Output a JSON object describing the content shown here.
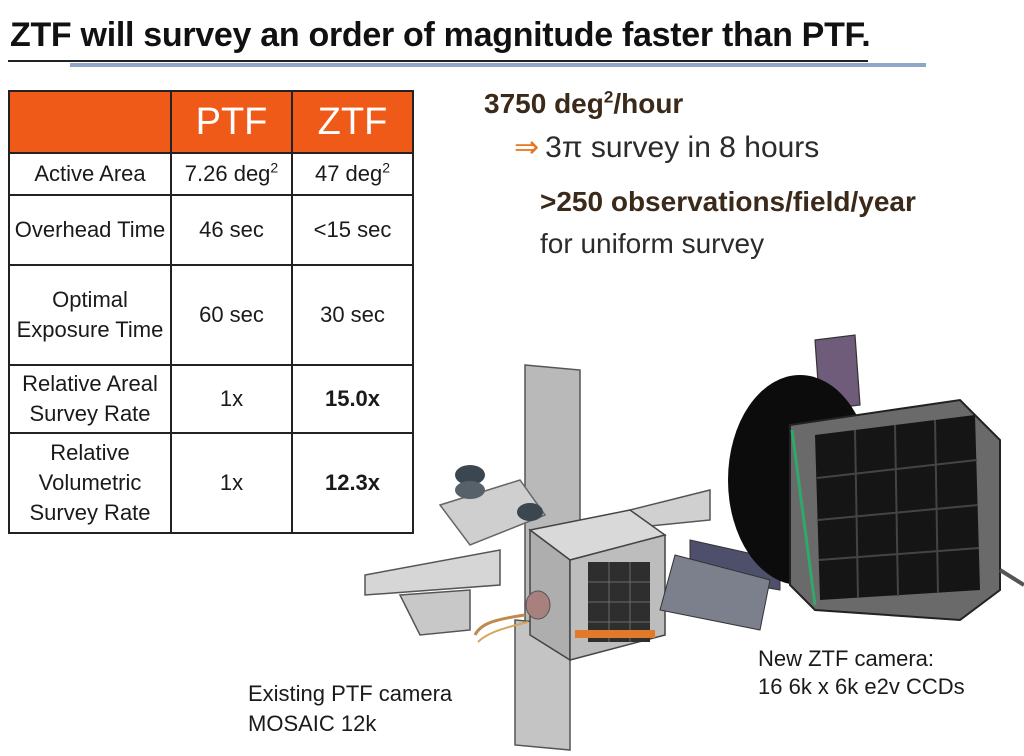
{
  "title": "ZTF will survey an order of magnitude faster than PTF.",
  "table": {
    "headers": [
      "PTF",
      "ZTF"
    ],
    "rows": [
      {
        "label": "Active Area",
        "ptf_base": "7.26 deg",
        "ptf_sup": "2",
        "ztf_base": "47 deg",
        "ztf_sup": "2"
      },
      {
        "label": "Overhead Time",
        "ptf": "46 sec",
        "ztf": "<15 sec"
      },
      {
        "label": "Optimal Exposure Time",
        "ptf": "60 sec",
        "ztf": "30 sec"
      },
      {
        "label": "Relative Areal Survey Rate",
        "ptf": "1x",
        "ztf": "15.0x"
      },
      {
        "label": "Relative Volumetric Survey Rate",
        "ptf": "1x",
        "ztf": "12.3x"
      }
    ]
  },
  "rate": {
    "base": "3750 deg",
    "sup": "2",
    "suffix": "/hour"
  },
  "survey": {
    "arrow": "⇒",
    "text": "3π survey in 8 hours"
  },
  "observations": ">250 observations/field/year",
  "uniform": "for uniform survey",
  "captions": {
    "ztf_line1": "New ZTF camera:",
    "ztf_line2": "16 6k x 6k e2v CCDs",
    "ptf_line1": "Existing PTF camera",
    "ptf_line2": "MOSAIC 12k"
  },
  "colors": {
    "header_orange": "#f05a19",
    "accent_arrow": "#e8741c",
    "rule_blue": "#8fa6c9"
  }
}
